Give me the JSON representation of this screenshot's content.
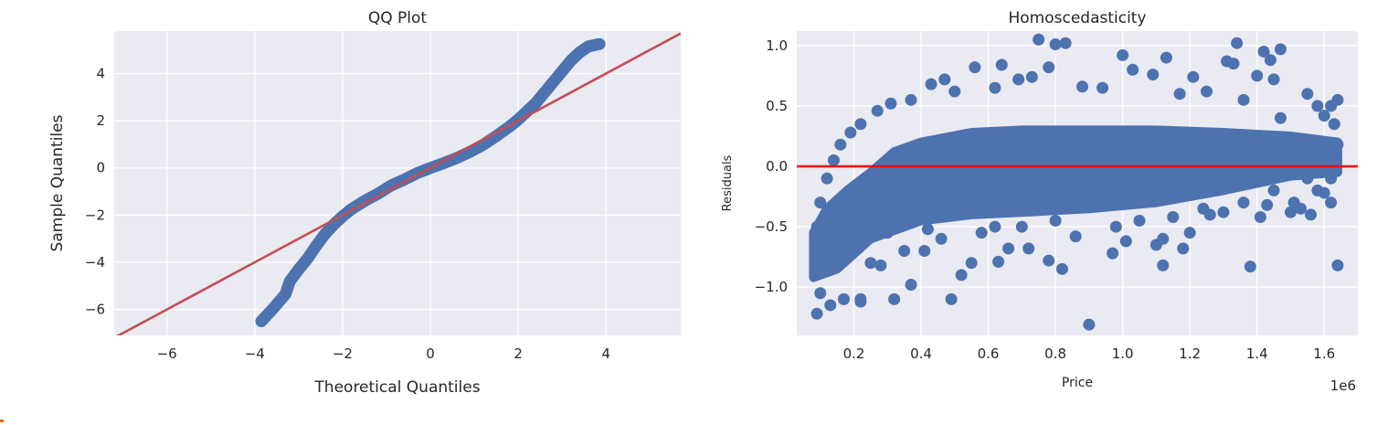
{
  "colors": {
    "plot_background": "#eaeaf2",
    "grid": "#ffffff",
    "points": "#4c72b0",
    "qq_line": "#c44e52",
    "zero_line": "#ff0000",
    "text": "#262626"
  },
  "chart_data": [
    {
      "type": "scatter",
      "title": "QQ Plot",
      "xlabel": "Theoretical Quantiles",
      "ylabel": "Sample Quantiles",
      "xlim": [
        -7.2,
        5.7
      ],
      "ylim": [
        -7.1,
        5.8
      ],
      "xticks": [
        -6,
        -4,
        -2,
        0,
        2,
        4
      ],
      "xtick_labels": [
        "−6",
        "−4",
        "−2",
        "0",
        "2",
        "4"
      ],
      "yticks": [
        -6,
        -4,
        -2,
        0,
        2,
        4
      ],
      "ytick_labels": [
        "−6",
        "−4",
        "−2",
        "0",
        "2",
        "4"
      ],
      "grid": true,
      "reference_line": {
        "slope": 1.0,
        "intercept": 0.0,
        "color": "#c44e52"
      },
      "quantile_curve": [
        [
          -3.85,
          -6.5
        ],
        [
          -3.6,
          -6.0
        ],
        [
          -3.3,
          -5.35
        ],
        [
          -3.2,
          -4.8
        ],
        [
          -3.0,
          -4.3
        ],
        [
          -2.8,
          -3.85
        ],
        [
          -2.6,
          -3.3
        ],
        [
          -2.4,
          -2.8
        ],
        [
          -2.2,
          -2.4
        ],
        [
          -2.0,
          -2.05
        ],
        [
          -1.8,
          -1.75
        ],
        [
          -1.5,
          -1.4
        ],
        [
          -1.2,
          -1.1
        ],
        [
          -0.9,
          -0.75
        ],
        [
          -0.6,
          -0.5
        ],
        [
          -0.3,
          -0.22
        ],
        [
          0.0,
          0.0
        ],
        [
          0.3,
          0.2
        ],
        [
          0.6,
          0.42
        ],
        [
          0.9,
          0.68
        ],
        [
          1.2,
          0.98
        ],
        [
          1.5,
          1.35
        ],
        [
          1.8,
          1.75
        ],
        [
          2.0,
          2.05
        ],
        [
          2.2,
          2.4
        ],
        [
          2.4,
          2.75
        ],
        [
          2.6,
          3.2
        ],
        [
          2.8,
          3.65
        ],
        [
          3.0,
          4.1
        ],
        [
          3.2,
          4.55
        ],
        [
          3.4,
          4.9
        ],
        [
          3.6,
          5.15
        ],
        [
          3.85,
          5.25
        ]
      ]
    },
    {
      "type": "scatter",
      "title": "Homoscedasticity",
      "xlabel": "Price",
      "ylabel": "Residuals",
      "x_offset_label": "1e6",
      "xlim": [
        0.03,
        1.7
      ],
      "ylim": [
        -1.4,
        1.12
      ],
      "xticks": [
        0.2,
        0.4,
        0.6,
        0.8,
        1.0,
        1.2,
        1.4,
        1.6
      ],
      "xtick_labels": [
        "0.2",
        "0.4",
        "0.6",
        "0.8",
        "1.0",
        "1.2",
        "1.4",
        "1.6"
      ],
      "yticks": [
        1.0,
        0.5,
        0.0,
        -0.5,
        -1.0
      ],
      "ytick_labels": [
        "1.0",
        "0.5",
        "0.0",
        "−0.5",
        "−1.0"
      ],
      "grid": true,
      "zero_line": {
        "y": 0.0,
        "color": "#ff0000"
      },
      "cloud_envelope": [
        [
          0.08,
          -0.55
        ],
        [
          0.12,
          -0.35
        ],
        [
          0.18,
          -0.2
        ],
        [
          0.25,
          -0.05
        ],
        [
          0.32,
          0.12
        ],
        [
          0.4,
          0.2
        ],
        [
          0.55,
          0.28
        ],
        [
          0.7,
          0.3
        ],
        [
          0.9,
          0.3
        ],
        [
          1.1,
          0.3
        ],
        [
          1.3,
          0.28
        ],
        [
          1.5,
          0.25
        ],
        [
          1.64,
          0.2
        ],
        [
          1.64,
          -0.05
        ],
        [
          1.5,
          -0.08
        ],
        [
          1.3,
          -0.2
        ],
        [
          1.1,
          -0.3
        ],
        [
          0.9,
          -0.35
        ],
        [
          0.7,
          -0.38
        ],
        [
          0.55,
          -0.4
        ],
        [
          0.4,
          -0.45
        ],
        [
          0.25,
          -0.6
        ],
        [
          0.15,
          -0.85
        ],
        [
          0.08,
          -0.92
        ]
      ],
      "points": [
        [
          0.09,
          -1.22
        ],
        [
          0.1,
          -1.05
        ],
        [
          0.13,
          -1.15
        ],
        [
          0.17,
          -1.1
        ],
        [
          0.22,
          -1.12
        ],
        [
          0.22,
          -1.1
        ],
        [
          0.32,
          -1.1
        ],
        [
          0.37,
          -0.98
        ],
        [
          0.49,
          -1.1
        ],
        [
          0.52,
          -0.9
        ],
        [
          0.9,
          -1.31
        ],
        [
          1.38,
          -0.83
        ],
        [
          1.64,
          -0.82
        ],
        [
          0.55,
          -0.8
        ],
        [
          0.63,
          -0.79
        ],
        [
          0.66,
          -0.68
        ],
        [
          0.72,
          -0.68
        ],
        [
          0.78,
          -0.78
        ],
        [
          0.82,
          -0.85
        ],
        [
          0.97,
          -0.72
        ],
        [
          1.1,
          -0.65
        ],
        [
          1.12,
          -0.82
        ],
        [
          1.18,
          -0.68
        ],
        [
          1.12,
          -0.6
        ],
        [
          1.01,
          -0.62
        ],
        [
          0.28,
          -0.82
        ],
        [
          0.25,
          -0.8
        ],
        [
          0.35,
          -0.7
        ],
        [
          0.41,
          -0.7
        ],
        [
          0.46,
          -0.6
        ],
        [
          0.58,
          -0.55
        ],
        [
          0.86,
          -0.58
        ],
        [
          0.98,
          -0.5
        ],
        [
          1.2,
          -0.55
        ],
        [
          1.26,
          -0.4
        ],
        [
          1.3,
          -0.38
        ],
        [
          1.41,
          -0.42
        ],
        [
          1.5,
          -0.38
        ],
        [
          1.53,
          -0.35
        ],
        [
          1.62,
          -0.3
        ],
        [
          0.75,
          1.05
        ],
        [
          0.8,
          1.01
        ],
        [
          0.83,
          1.02
        ],
        [
          1.0,
          0.92
        ],
        [
          1.13,
          0.9
        ],
        [
          1.34,
          1.02
        ],
        [
          1.42,
          0.95
        ],
        [
          1.47,
          0.97
        ],
        [
          1.31,
          0.87
        ],
        [
          1.33,
          0.85
        ],
        [
          1.44,
          0.88
        ],
        [
          0.56,
          0.82
        ],
        [
          0.64,
          0.84
        ],
        [
          0.73,
          0.74
        ],
        [
          0.78,
          0.82
        ],
        [
          0.69,
          0.72
        ],
        [
          1.03,
          0.8
        ],
        [
          1.09,
          0.76
        ],
        [
          1.21,
          0.74
        ],
        [
          1.25,
          0.62
        ],
        [
          1.4,
          0.75
        ],
        [
          1.45,
          0.72
        ],
        [
          0.47,
          0.72
        ],
        [
          0.43,
          0.68
        ],
        [
          0.37,
          0.55
        ],
        [
          0.31,
          0.52
        ],
        [
          0.27,
          0.46
        ],
        [
          1.55,
          0.6
        ],
        [
          1.58,
          0.5
        ],
        [
          1.6,
          0.42
        ],
        [
          1.62,
          0.5
        ],
        [
          1.64,
          0.55
        ],
        [
          1.63,
          0.35
        ],
        [
          1.64,
          0.18
        ],
        [
          1.6,
          0.1
        ],
        [
          1.55,
          -0.1
        ],
        [
          1.58,
          -0.2
        ],
        [
          1.62,
          -0.1
        ],
        [
          1.45,
          -0.2
        ],
        [
          1.47,
          0.4
        ],
        [
          1.36,
          0.55
        ],
        [
          1.17,
          0.6
        ],
        [
          0.94,
          0.65
        ],
        [
          0.88,
          0.66
        ],
        [
          0.62,
          0.65
        ],
        [
          0.5,
          0.62
        ],
        [
          0.22,
          0.35
        ],
        [
          0.19,
          0.28
        ],
        [
          0.16,
          0.18
        ],
        [
          0.14,
          0.05
        ],
        [
          0.12,
          -0.1
        ],
        [
          0.1,
          -0.3
        ],
        [
          0.09,
          -0.5
        ],
        [
          0.1,
          -0.72
        ],
        [
          0.11,
          -0.85
        ],
        [
          0.14,
          -0.65
        ],
        [
          0.2,
          -0.5
        ],
        [
          0.3,
          -0.55
        ],
        [
          0.42,
          -0.52
        ],
        [
          0.62,
          -0.5
        ],
        [
          0.7,
          -0.5
        ],
        [
          0.8,
          -0.45
        ],
        [
          1.05,
          -0.45
        ],
        [
          1.15,
          -0.42
        ],
        [
          1.24,
          -0.35
        ],
        [
          1.36,
          -0.3
        ],
        [
          1.43,
          -0.32
        ],
        [
          1.51,
          -0.3
        ],
        [
          1.56,
          -0.4
        ],
        [
          1.6,
          -0.22
        ]
      ]
    }
  ]
}
